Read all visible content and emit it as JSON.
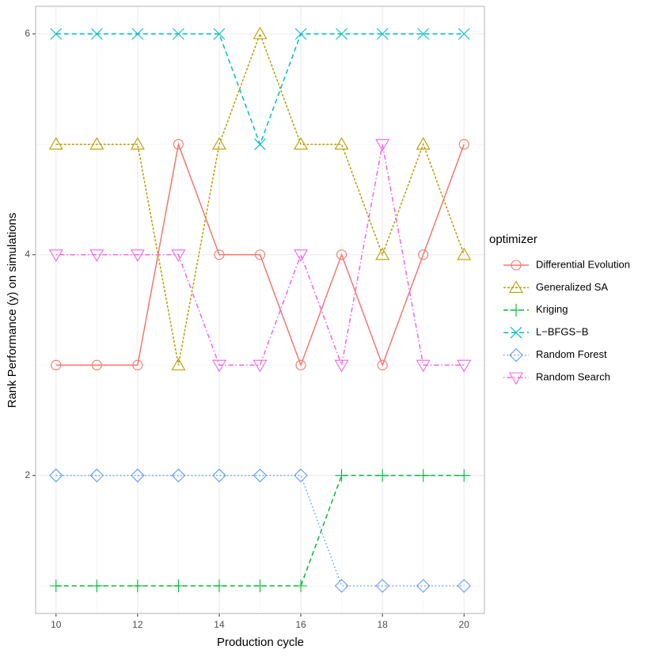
{
  "chart_data": {
    "type": "line",
    "x_label": "Production cycle",
    "y_label": "Rank Performance (y) on simulations",
    "legend_title": "optimizer",
    "legend_position": "right",
    "x": [
      10,
      11,
      12,
      13,
      14,
      15,
      16,
      17,
      18,
      19,
      20
    ],
    "xlim": [
      9.5,
      20.5
    ],
    "xticks": [
      10,
      12,
      14,
      16,
      18,
      20
    ],
    "ylim": [
      0.75,
      6.25
    ],
    "yticks": [
      2,
      4,
      6
    ],
    "x_minor_ticks": [
      11,
      13,
      15,
      17,
      19
    ],
    "y_minor_ticks": [
      1,
      3,
      5
    ],
    "grid": true,
    "series": [
      {
        "name": "Differential Evolution",
        "color": "#F8766D",
        "linetype": "solid",
        "shape": "circle",
        "values": [
          3,
          3,
          3,
          5,
          4,
          4,
          3,
          4,
          3,
          4,
          5
        ]
      },
      {
        "name": "Generalized SA",
        "color": "#B79F00",
        "linetype": "shortdash",
        "shape": "triangle",
        "values": [
          5,
          5,
          5,
          3,
          5,
          6,
          5,
          5,
          4,
          5,
          4
        ]
      },
      {
        "name": "Kriging",
        "color": "#00BA38",
        "linetype": "dashed",
        "shape": "plus",
        "values": [
          1,
          1,
          1,
          1,
          1,
          1,
          1,
          2,
          2,
          2,
          2
        ]
      },
      {
        "name": "L−BFGS−B",
        "color": "#00BFC4",
        "linetype": "dashed",
        "shape": "cross",
        "values": [
          6,
          6,
          6,
          6,
          6,
          5,
          6,
          6,
          6,
          6,
          6
        ]
      },
      {
        "name": "Random Forest",
        "color": "#619CFF",
        "linetype": "dotted",
        "shape": "diamond",
        "values": [
          2,
          2,
          2,
          2,
          2,
          2,
          2,
          1,
          1,
          1,
          1
        ]
      },
      {
        "name": "Random Search",
        "color": "#F564E3",
        "linetype": "dotdash",
        "shape": "triangle-down",
        "values": [
          4,
          4,
          4,
          4,
          3,
          3,
          4,
          3,
          5,
          3,
          3
        ]
      }
    ]
  }
}
